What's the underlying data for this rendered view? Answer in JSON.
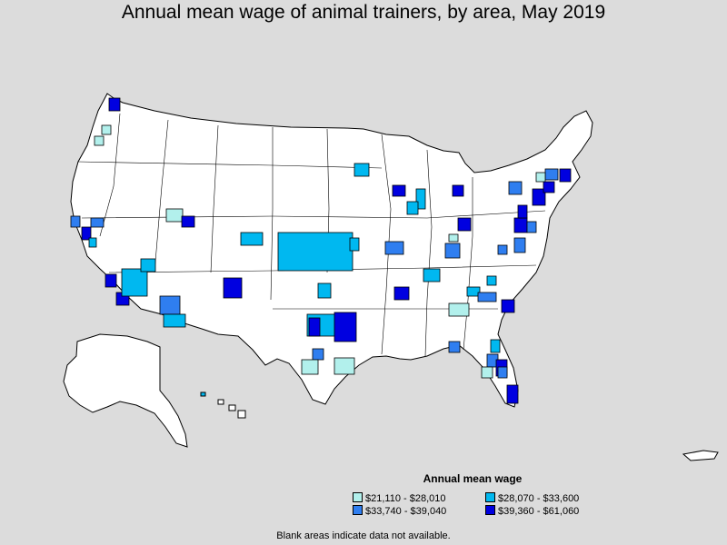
{
  "title": "Annual mean wage of animal trainers, by area, May 2019",
  "legend": {
    "title": "Annual mean wage",
    "items": [
      {
        "label": "$21,110 - $28,010",
        "color": "#b2f0ec"
      },
      {
        "label": "$28,070 - $33,600",
        "color": "#00b8f0"
      },
      {
        "label": "$33,740 - $39,040",
        "color": "#2f7ef0"
      },
      {
        "label": "$39,360 - $61,060",
        "color": "#0000e0"
      }
    ]
  },
  "note": "Blank areas indicate data not available.",
  "colors": {
    "background": "#dcdcdc",
    "land": "#ffffff",
    "border": "#000000"
  }
}
